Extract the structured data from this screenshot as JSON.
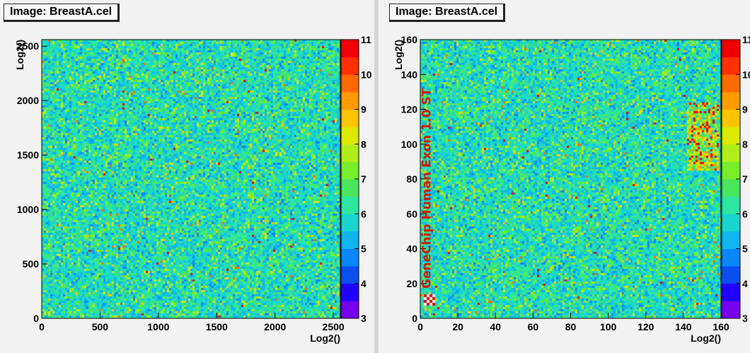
{
  "panels": [
    {
      "title": "Image: BreastA.cel",
      "chart_data": {
        "type": "heatmap",
        "title": "Image: BreastA.cel",
        "xlabel": "Log2()",
        "ylabel": "Log2()",
        "xlim": [
          0,
          2560
        ],
        "ylim": [
          0,
          2560
        ],
        "xticks": [
          0,
          500,
          1000,
          1500,
          2000,
          2500
        ],
        "yticks": [
          0,
          500,
          1000,
          1500,
          2000,
          2500
        ],
        "zlim": [
          3,
          11
        ],
        "zticks": [
          3,
          4,
          5,
          6,
          7,
          8,
          9,
          10,
          11
        ],
        "colorbar": "right",
        "grid": false
      }
    },
    {
      "title": "Image: BreastA.cel",
      "overlay_text": "GeneChip Human Exon 1.0 ST",
      "chart_data": {
        "type": "heatmap",
        "title": "Image: BreastA.cel",
        "xlabel": "Log2()",
        "ylabel": "Log2()",
        "xlim": [
          0,
          160
        ],
        "ylim": [
          0,
          160
        ],
        "xticks": [
          0,
          20,
          40,
          60,
          80,
          100,
          120,
          140,
          160
        ],
        "yticks": [
          0,
          20,
          40,
          60,
          80,
          100,
          120,
          140,
          160
        ],
        "zlim": [
          3,
          11
        ],
        "zticks": [
          3,
          4,
          5,
          6,
          7,
          8,
          9,
          10,
          11
        ],
        "colorbar": "right",
        "grid": false
      }
    }
  ]
}
